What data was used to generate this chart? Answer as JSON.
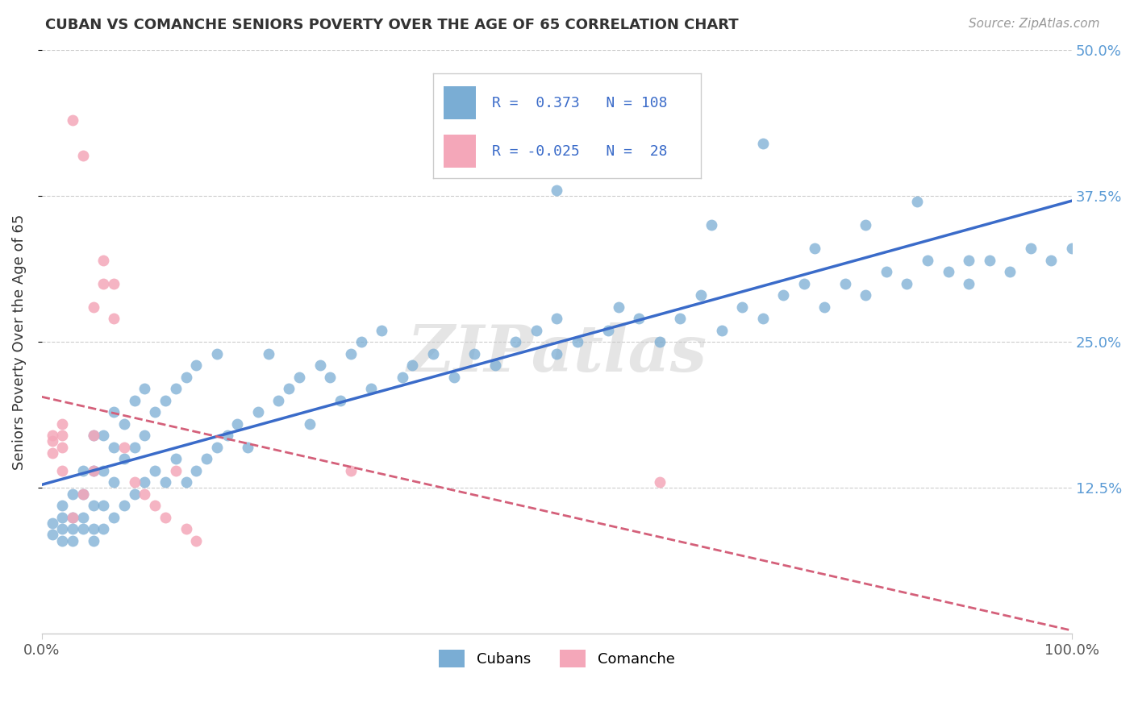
{
  "title": "CUBAN VS COMANCHE SENIORS POVERTY OVER THE AGE OF 65 CORRELATION CHART",
  "source": "Source: ZipAtlas.com",
  "ylabel": "Seniors Poverty Over the Age of 65",
  "xlim": [
    0,
    1.0
  ],
  "ylim": [
    0,
    0.5
  ],
  "ytick_labels": [
    "12.5%",
    "25.0%",
    "37.5%",
    "50.0%"
  ],
  "ytick_positions": [
    0.125,
    0.25,
    0.375,
    0.5
  ],
  "legend_cubans_label": "Cubans",
  "legend_comanche_label": "Comanche",
  "r_cubans": 0.373,
  "n_cubans": 108,
  "r_comanche": -0.025,
  "n_comanche": 28,
  "cubans_color": "#7aadd4",
  "comanche_color": "#f4a7b9",
  "line_cubans_color": "#3a6bc9",
  "line_comanche_color": "#d4607a",
  "watermark": "ZIPatlas",
  "background_color": "#ffffff",
  "grid_color": "#cccccc",
  "cubans_x": [
    0.01,
    0.01,
    0.02,
    0.02,
    0.02,
    0.02,
    0.03,
    0.03,
    0.03,
    0.03,
    0.04,
    0.04,
    0.04,
    0.04,
    0.05,
    0.05,
    0.05,
    0.05,
    0.05,
    0.06,
    0.06,
    0.06,
    0.06,
    0.07,
    0.07,
    0.07,
    0.07,
    0.08,
    0.08,
    0.08,
    0.09,
    0.09,
    0.09,
    0.1,
    0.1,
    0.1,
    0.11,
    0.11,
    0.12,
    0.12,
    0.13,
    0.13,
    0.14,
    0.14,
    0.15,
    0.15,
    0.16,
    0.17,
    0.17,
    0.18,
    0.19,
    0.2,
    0.21,
    0.22,
    0.23,
    0.24,
    0.25,
    0.26,
    0.27,
    0.28,
    0.29,
    0.3,
    0.31,
    0.32,
    0.33,
    0.35,
    0.36,
    0.38,
    0.4,
    0.42,
    0.44,
    0.46,
    0.48,
    0.5,
    0.5,
    0.52,
    0.55,
    0.56,
    0.58,
    0.6,
    0.62,
    0.64,
    0.66,
    0.68,
    0.7,
    0.72,
    0.74,
    0.76,
    0.78,
    0.8,
    0.82,
    0.84,
    0.86,
    0.88,
    0.9,
    0.92,
    0.94,
    0.96,
    0.98,
    1.0,
    0.5,
    0.6,
    0.65,
    0.7,
    0.75,
    0.8,
    0.85,
    0.9
  ],
  "cubans_y": [
    0.085,
    0.095,
    0.08,
    0.09,
    0.1,
    0.11,
    0.08,
    0.09,
    0.1,
    0.12,
    0.09,
    0.1,
    0.12,
    0.14,
    0.08,
    0.09,
    0.11,
    0.14,
    0.17,
    0.09,
    0.11,
    0.14,
    0.17,
    0.1,
    0.13,
    0.16,
    0.19,
    0.11,
    0.15,
    0.18,
    0.12,
    0.16,
    0.2,
    0.13,
    0.17,
    0.21,
    0.14,
    0.19,
    0.13,
    0.2,
    0.15,
    0.21,
    0.13,
    0.22,
    0.14,
    0.23,
    0.15,
    0.16,
    0.24,
    0.17,
    0.18,
    0.16,
    0.19,
    0.24,
    0.2,
    0.21,
    0.22,
    0.18,
    0.23,
    0.22,
    0.2,
    0.24,
    0.25,
    0.21,
    0.26,
    0.22,
    0.23,
    0.24,
    0.22,
    0.24,
    0.23,
    0.25,
    0.26,
    0.24,
    0.27,
    0.25,
    0.26,
    0.28,
    0.27,
    0.25,
    0.27,
    0.29,
    0.26,
    0.28,
    0.27,
    0.29,
    0.3,
    0.28,
    0.3,
    0.29,
    0.31,
    0.3,
    0.32,
    0.31,
    0.3,
    0.32,
    0.31,
    0.33,
    0.32,
    0.33,
    0.38,
    0.4,
    0.35,
    0.42,
    0.33,
    0.35,
    0.37,
    0.32
  ],
  "comanche_x": [
    0.01,
    0.01,
    0.01,
    0.02,
    0.02,
    0.02,
    0.02,
    0.03,
    0.03,
    0.04,
    0.04,
    0.05,
    0.05,
    0.05,
    0.06,
    0.06,
    0.07,
    0.07,
    0.08,
    0.09,
    0.1,
    0.11,
    0.12,
    0.13,
    0.14,
    0.15,
    0.3,
    0.6
  ],
  "comanche_y": [
    0.155,
    0.165,
    0.17,
    0.14,
    0.16,
    0.17,
    0.18,
    0.1,
    0.44,
    0.41,
    0.12,
    0.14,
    0.17,
    0.28,
    0.3,
    0.32,
    0.27,
    0.3,
    0.16,
    0.13,
    0.12,
    0.11,
    0.1,
    0.14,
    0.09,
    0.08,
    0.14,
    0.13
  ]
}
